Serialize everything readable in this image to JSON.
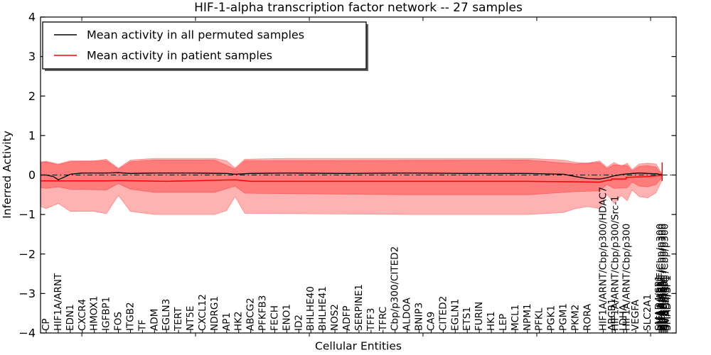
{
  "legend": {
    "items": [
      {
        "label": "Mean activity in all permuted samples",
        "color": "#000000"
      },
      {
        "label": "Mean activity in patient samples",
        "color": "#ff0000"
      }
    ]
  },
  "chart_data": {
    "type": "line",
    "title": "HIF-1-alpha transcription factor network -- 27 samples",
    "xlabel": "Cellular Entities",
    "ylabel": "Inferred Activity",
    "ylim": [
      -4,
      4
    ],
    "grid": false,
    "legend_position": "upper left",
    "yticks": {
      "values": [
        4,
        3,
        2,
        1,
        0,
        -1,
        -2,
        -3,
        -4
      ],
      "labels": [
        "4",
        "3",
        "2",
        "1",
        "0",
        "−1",
        "−2",
        "−3",
        "−4"
      ]
    },
    "zero_line": {
      "y": 0,
      "style": "dash-dot",
      "color": "#000000"
    },
    "entities": [
      {
        "x": 0,
        "label": "CP"
      },
      {
        "x": 1,
        "label": "HIF1A/ARNT"
      },
      {
        "x": 2,
        "label": "EDN1"
      },
      {
        "x": 3,
        "label": "CXCR4"
      },
      {
        "x": 4,
        "label": "HMOX1"
      },
      {
        "x": 5,
        "label": "IGFBP1"
      },
      {
        "x": 6,
        "label": "FOS"
      },
      {
        "x": 7,
        "label": "ITGB2"
      },
      {
        "x": 8,
        "label": "TF"
      },
      {
        "x": 9,
        "label": "ADM"
      },
      {
        "x": 10,
        "label": "EGLN3"
      },
      {
        "x": 11,
        "label": "TERT"
      },
      {
        "x": 12,
        "label": "NT5E"
      },
      {
        "x": 13,
        "label": "CXCL12"
      },
      {
        "x": 14,
        "label": "NDRG1"
      },
      {
        "x": 15,
        "label": "AP1"
      },
      {
        "x": 16,
        "label": "HK2"
      },
      {
        "x": 17,
        "label": "ABCG2"
      },
      {
        "x": 18,
        "label": "PFKFB3"
      },
      {
        "x": 19,
        "label": "FECH"
      },
      {
        "x": 20,
        "label": "ENO1"
      },
      {
        "x": 21,
        "label": "ID2"
      },
      {
        "x": 22,
        "label": "BHLHE40"
      },
      {
        "x": 23,
        "label": "BHLHE41"
      },
      {
        "x": 24,
        "label": "NOS2"
      },
      {
        "x": 25,
        "label": "ADFP"
      },
      {
        "x": 26,
        "label": "SERPINE1"
      },
      {
        "x": 27,
        "label": "TFF3"
      },
      {
        "x": 28,
        "label": "TFRC"
      },
      {
        "x": 29,
        "label": "Cbp/p300/CITED2"
      },
      {
        "x": 30,
        "label": "ALDOA"
      },
      {
        "x": 31,
        "label": "BNIP3"
      },
      {
        "x": 32,
        "label": "CA9"
      },
      {
        "x": 33,
        "label": "CITED2"
      },
      {
        "x": 34,
        "label": "EGLN1"
      },
      {
        "x": 35,
        "label": "ETS1"
      },
      {
        "x": 36,
        "label": "FURIN"
      },
      {
        "x": 37,
        "label": "HK1"
      },
      {
        "x": 38,
        "label": "LEP"
      },
      {
        "x": 39,
        "label": "MCL1"
      },
      {
        "x": 40,
        "label": "NPM1"
      },
      {
        "x": 41,
        "label": "PFKL"
      },
      {
        "x": 42,
        "label": "PGK1"
      },
      {
        "x": 43,
        "label": "PGM1"
      },
      {
        "x": 44,
        "label": "PKM2"
      },
      {
        "x": 45,
        "label": "RORA"
      },
      {
        "x": 46.3,
        "label": "HIF1A/ARNT/Cbp/p300/HDAC7"
      },
      {
        "x": 47.05,
        "label": "ABCB1"
      },
      {
        "x": 47.3,
        "label": "HIF1A/ARNT/Cbp/p300/Src-1"
      },
      {
        "x": 48.0,
        "label": "LDHA"
      },
      {
        "x": 48.25,
        "label": "HIF1A/ARNT/Cbp/p300"
      },
      {
        "x": 49.0,
        "label": "VEGFA"
      },
      {
        "x": 50.0,
        "label": "SLC2A1"
      },
      {
        "x": 50.95,
        "label": "SMAD4/SP1"
      },
      {
        "x": 51.05,
        "label": "HIF1A/ARNT/Cbp/p300"
      },
      {
        "x": 51.15,
        "label": "SMAD4/SP1"
      },
      {
        "x": 51.25,
        "label": "HIF1A/ARNT/Cbp/p300"
      },
      {
        "x": 51.35,
        "label": "SMAD4/SP1"
      },
      {
        "x": 51.45,
        "label": "HIF1A/ARNT/Cbp/p300"
      },
      {
        "x": 51.55,
        "label": "SMAD4/SP1"
      },
      {
        "x": 51.65,
        "label": "SMAD4/SP1"
      }
    ],
    "xaxis_major_marks": [
      2.96,
      12.41,
      21.87,
      31.32,
      40.78,
      50.24
    ],
    "bands": [
      {
        "name": "outer-confidence-band",
        "color": "#ff0000",
        "alpha": 0.3,
        "top": [
          [
            -0.45,
            0.33
          ],
          [
            0,
            0.35
          ],
          [
            1,
            0.28
          ],
          [
            2,
            0.36
          ],
          [
            4,
            0.36
          ],
          [
            5,
            0.4
          ],
          [
            6,
            0.17
          ],
          [
            7,
            0.38
          ],
          [
            8,
            0.4
          ],
          [
            9,
            0.42
          ],
          [
            14,
            0.42
          ],
          [
            15,
            0.36
          ],
          [
            15.7,
            0.18
          ],
          [
            16.5,
            0.4
          ],
          [
            20,
            0.42
          ],
          [
            30,
            0.42
          ],
          [
            40,
            0.42
          ],
          [
            43,
            0.38
          ],
          [
            44,
            0.32
          ],
          [
            45,
            0.3
          ],
          [
            46,
            0.36
          ],
          [
            46.6,
            0.2
          ],
          [
            47.2,
            0.32
          ],
          [
            47.8,
            0.22
          ],
          [
            48.3,
            0.3
          ],
          [
            48.7,
            0.14
          ],
          [
            49.3,
            0.28
          ],
          [
            50,
            0.3
          ],
          [
            50.7,
            0.28
          ],
          [
            51.2,
            0.02
          ]
        ],
        "bottom": [
          [
            -0.45,
            -0.8
          ],
          [
            0,
            -0.85
          ],
          [
            1,
            -0.72
          ],
          [
            2,
            -0.92
          ],
          [
            4,
            -0.92
          ],
          [
            5,
            -0.98
          ],
          [
            6,
            -0.52
          ],
          [
            7,
            -0.92
          ],
          [
            9,
            -1.0
          ],
          [
            14,
            -1.0
          ],
          [
            15,
            -0.9
          ],
          [
            15.7,
            -0.55
          ],
          [
            16.5,
            -0.97
          ],
          [
            30,
            -1.0
          ],
          [
            40,
            -1.0
          ],
          [
            43,
            -0.95
          ],
          [
            44,
            -0.85
          ],
          [
            45,
            -0.8
          ],
          [
            46,
            -0.85
          ],
          [
            46.6,
            -0.48
          ],
          [
            47.2,
            -0.72
          ],
          [
            47.8,
            -0.52
          ],
          [
            48.3,
            -0.65
          ],
          [
            48.7,
            -0.38
          ],
          [
            49.3,
            -0.55
          ],
          [
            50,
            -0.58
          ],
          [
            50.7,
            -0.45
          ],
          [
            51.2,
            -0.12
          ]
        ]
      },
      {
        "name": "inner-confidence-band",
        "color": "#ff0000",
        "alpha": 0.3,
        "top": [
          [
            -0.45,
            0.32
          ],
          [
            0,
            0.33
          ],
          [
            1,
            0.26
          ],
          [
            2,
            0.34
          ],
          [
            5,
            0.36
          ],
          [
            6,
            0.15
          ],
          [
            7,
            0.34
          ],
          [
            9,
            0.38
          ],
          [
            14,
            0.38
          ],
          [
            15.7,
            0.15
          ],
          [
            16.5,
            0.36
          ],
          [
            40,
            0.38
          ],
          [
            44,
            0.28
          ],
          [
            46,
            0.32
          ],
          [
            46.6,
            0.16
          ],
          [
            47.2,
            0.26
          ],
          [
            48.3,
            0.24
          ],
          [
            48.7,
            0.1
          ],
          [
            49.3,
            0.22
          ],
          [
            50,
            0.24
          ],
          [
            50.7,
            0.2
          ],
          [
            51.2,
            0.0
          ]
        ],
        "bottom": [
          [
            -0.45,
            -0.32
          ],
          [
            0,
            -0.34
          ],
          [
            1,
            -0.3
          ],
          [
            2,
            -0.36
          ],
          [
            5,
            -0.38
          ],
          [
            6,
            -0.22
          ],
          [
            7,
            -0.36
          ],
          [
            9,
            -0.44
          ],
          [
            14,
            -0.44
          ],
          [
            15.7,
            -0.28
          ],
          [
            16.5,
            -0.46
          ],
          [
            30,
            -0.5
          ],
          [
            40,
            -0.5
          ],
          [
            44,
            -0.42
          ],
          [
            46,
            -0.4
          ],
          [
            46.6,
            -0.24
          ],
          [
            47.2,
            -0.34
          ],
          [
            48.3,
            -0.32
          ],
          [
            48.7,
            -0.18
          ],
          [
            49.3,
            -0.28
          ],
          [
            50,
            -0.3
          ],
          [
            50.7,
            -0.24
          ],
          [
            51.2,
            -0.06
          ]
        ]
      }
    ],
    "series": [
      {
        "name": "Mean activity in all permuted samples",
        "color": "#000000",
        "width": 1.3,
        "points": [
          [
            -0.45,
            0.0
          ],
          [
            0,
            0.0
          ],
          [
            0.6,
            -0.04
          ],
          [
            1,
            -0.12
          ],
          [
            1.6,
            -0.04
          ],
          [
            2,
            0.02
          ],
          [
            3,
            0.05
          ],
          [
            5,
            0.05
          ],
          [
            6,
            0.06
          ],
          [
            7,
            0.04
          ],
          [
            9,
            0.05
          ],
          [
            12,
            0.05
          ],
          [
            15,
            0.04
          ],
          [
            15.7,
            0.02
          ],
          [
            17,
            0.04
          ],
          [
            20,
            0.05
          ],
          [
            25,
            0.04
          ],
          [
            30,
            0.05
          ],
          [
            35,
            0.04
          ],
          [
            40,
            0.04
          ],
          [
            43,
            0.02
          ],
          [
            44,
            -0.04
          ],
          [
            45,
            -0.09
          ],
          [
            46,
            -0.1
          ],
          [
            46.6,
            -0.07
          ],
          [
            47.2,
            -0.02
          ],
          [
            48,
            0.02
          ],
          [
            48.7,
            0.04
          ],
          [
            49.3,
            0.05
          ],
          [
            50,
            0.04
          ],
          [
            50.7,
            0.03
          ],
          [
            51.2,
            0.01
          ]
        ]
      },
      {
        "name": "Mean activity in patient samples",
        "color": "#ff0000",
        "width": 1.5,
        "points": [
          [
            -0.45,
            -0.15
          ],
          [
            5,
            -0.15
          ],
          [
            6,
            -0.14
          ],
          [
            10,
            -0.16
          ],
          [
            15.7,
            -0.12
          ],
          [
            17,
            -0.16
          ],
          [
            30,
            -0.16
          ],
          [
            40,
            -0.16
          ],
          [
            44,
            -0.17
          ],
          [
            46,
            -0.18
          ],
          [
            46.8,
            -0.13
          ],
          [
            47.0,
            -0.13
          ],
          [
            47.0,
            -0.1
          ],
          [
            48.2,
            -0.1
          ],
          [
            48.2,
            -0.06
          ],
          [
            49,
            -0.05
          ],
          [
            50,
            -0.04
          ],
          [
            50.7,
            -0.02
          ],
          [
            51.2,
            -0.01
          ]
        ]
      }
    ],
    "end_spike": {
      "x": 51.2,
      "y_top": 0.32,
      "y_bottom": -0.15,
      "color": "#ff0000",
      "width": 1.5
    }
  }
}
